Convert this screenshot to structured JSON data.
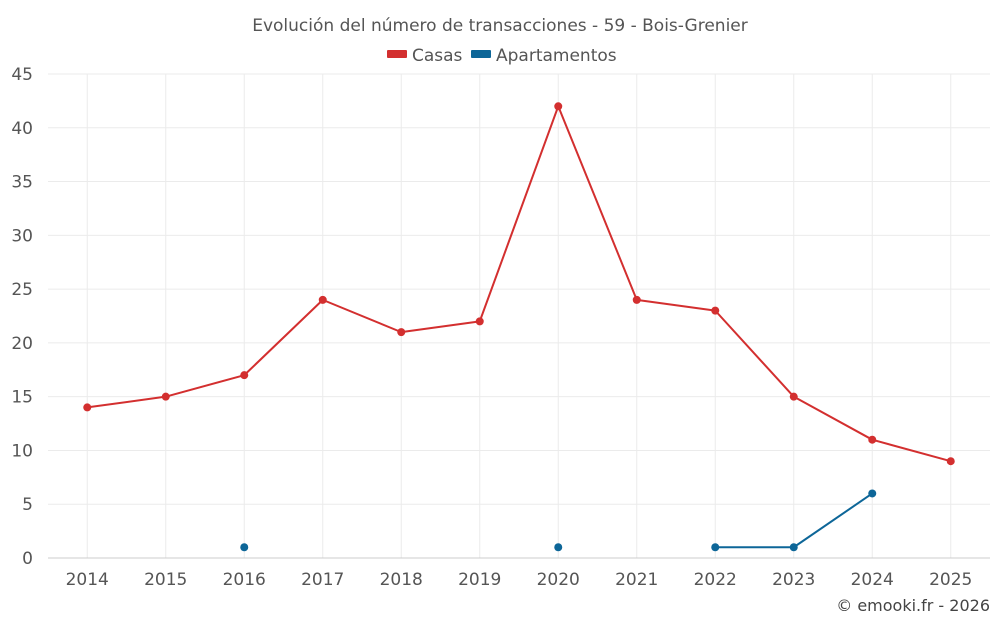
{
  "chart_data": {
    "type": "line",
    "title": "Evolución del número de transacciones - 59 - Bois-Grenier",
    "categories": [
      "2014",
      "2015",
      "2016",
      "2017",
      "2018",
      "2019",
      "2020",
      "2021",
      "2022",
      "2023",
      "2024",
      "2025"
    ],
    "series": [
      {
        "name": "Casas",
        "color": "#d32f2f",
        "values": [
          14,
          15,
          17,
          24,
          21,
          22,
          42,
          24,
          23,
          15,
          11,
          9
        ]
      },
      {
        "name": "Apartamentos",
        "color": "#0d6698",
        "values": [
          null,
          null,
          1,
          null,
          null,
          null,
          1,
          null,
          1,
          1,
          6,
          null
        ]
      }
    ],
    "ylim": [
      0,
      45
    ],
    "yticks": [
      0,
      5,
      10,
      15,
      20,
      25,
      30,
      35,
      40,
      45
    ],
    "xlabel": "",
    "ylabel": "",
    "legend": "top-center",
    "grid": true
  },
  "credit": "© emooki.fr - 2026"
}
